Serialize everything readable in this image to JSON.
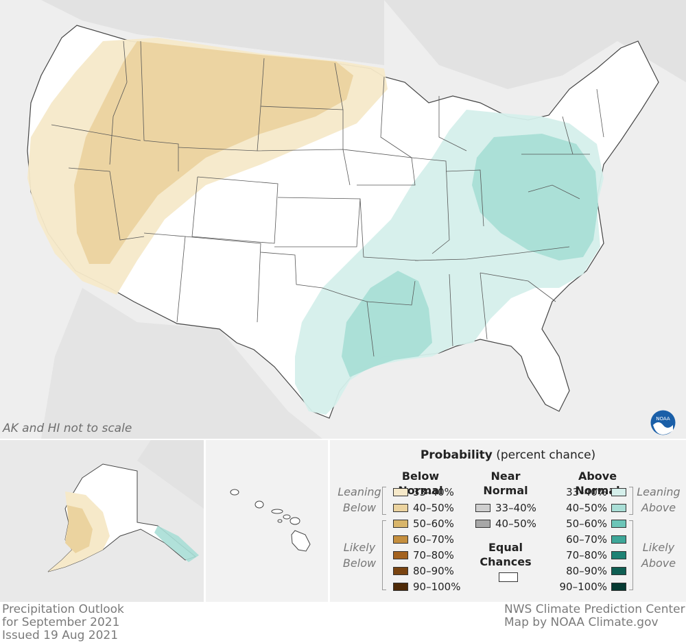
{
  "title": {
    "line1": "Precipitation Outlook",
    "line2": "for September 2021",
    "line3": "Issued 19 Aug 2021"
  },
  "credit": {
    "line1": "NWS Climate Prediction Center",
    "line2": "Map by NOAA Climate.gov"
  },
  "scale_note": "AK and HI not to scale",
  "logo_text": "NOAA",
  "legend": {
    "title_bold": "Probability",
    "title_rest": " (percent chance)",
    "below_normal": "Below Normal",
    "near_normal_1": "Near",
    "near_normal_2": "Normal",
    "above_normal": "Above Normal",
    "equal_chances_1": "Equal",
    "equal_chances_2": "Chances",
    "leaning_below_1": "Leaning",
    "leaning_below_2": "Below",
    "likely_below_1": "Likely",
    "likely_below_2": "Below",
    "leaning_above_1": "Leaning",
    "leaning_above_2": "Above",
    "likely_above_1": "Likely",
    "likely_above_2": "Above",
    "below_rows": [
      {
        "label": "33–40%",
        "color": "#f6e9c9"
      },
      {
        "label": "40–50%",
        "color": "#ebd39f"
      },
      {
        "label": "50–60%",
        "color": "#d8b56a"
      },
      {
        "label": "60–70%",
        "color": "#c58f3e"
      },
      {
        "label": "70–80%",
        "color": "#a3621f"
      },
      {
        "label": "80–90%",
        "color": "#7a4411"
      },
      {
        "label": "90–100%",
        "color": "#4f2a08"
      }
    ],
    "near_rows": [
      {
        "label": "33–40%",
        "color": "#cfcfcf"
      },
      {
        "label": "40–50%",
        "color": "#a8a8a8"
      }
    ],
    "above_rows": [
      {
        "label": "33–40%",
        "color": "#d5efeb"
      },
      {
        "label": "40–50%",
        "color": "#a9ded6"
      },
      {
        "label": "50–60%",
        "color": "#6cc5b8"
      },
      {
        "label": "60–70%",
        "color": "#3ea799"
      },
      {
        "label": "70–80%",
        "color": "#1e8274"
      },
      {
        "label": "80–90%",
        "color": "#0f5f53"
      },
      {
        "label": "90–100%",
        "color": "#063b33"
      }
    ],
    "equal_color": "#ffffff"
  },
  "colors": {
    "background_land": "#e9e9e9",
    "us_land": "#ffffff",
    "state_border": "#555555",
    "below_33_40": "#f6e9c9",
    "below_40_50": "#ebd39f",
    "above_33_40": "#d5efeb",
    "above_40_50": "#a9ded6",
    "noaa_blue": "#1a5fa8"
  }
}
